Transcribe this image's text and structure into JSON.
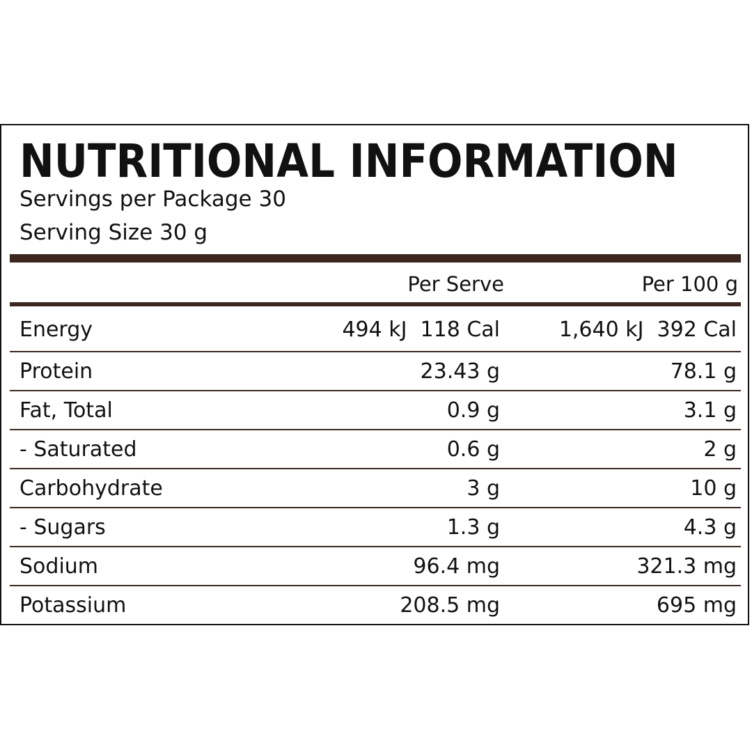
{
  "panel": {
    "title": "NUTRITIONAL INFORMATION",
    "servings_per_package": "Servings per Package 30",
    "serving_size": "Serving Size 30 g"
  },
  "columns": {
    "per_serve": "Per Serve",
    "per_100g": "Per 100 g"
  },
  "rows": [
    {
      "label": "Energy",
      "per_serve": "494 kJ  118 Cal",
      "per_100g": "1,640 kJ  392 Cal"
    },
    {
      "label": "Protein",
      "per_serve": "23.43 g",
      "per_100g": "78.1 g"
    },
    {
      "label": "Fat, Total",
      "per_serve": "0.9 g",
      "per_100g": "3.1 g"
    },
    {
      "label": "- Saturated",
      "per_serve": "0.6 g",
      "per_100g": "2 g"
    },
    {
      "label": "Carbohydrate",
      "per_serve": "3 g",
      "per_100g": "10 g"
    },
    {
      "label": "- Sugars",
      "per_serve": "1.3 g",
      "per_100g": "4.3 g"
    },
    {
      "label": "Sodium",
      "per_serve": "96.4 mg",
      "per_100g": "321.3 mg"
    },
    {
      "label": "Potassium",
      "per_serve": "208.5 mg",
      "per_100g": "695 mg"
    }
  ],
  "colors": {
    "rule": "#3b2620",
    "text": "#111111",
    "background": "#ffffff"
  }
}
